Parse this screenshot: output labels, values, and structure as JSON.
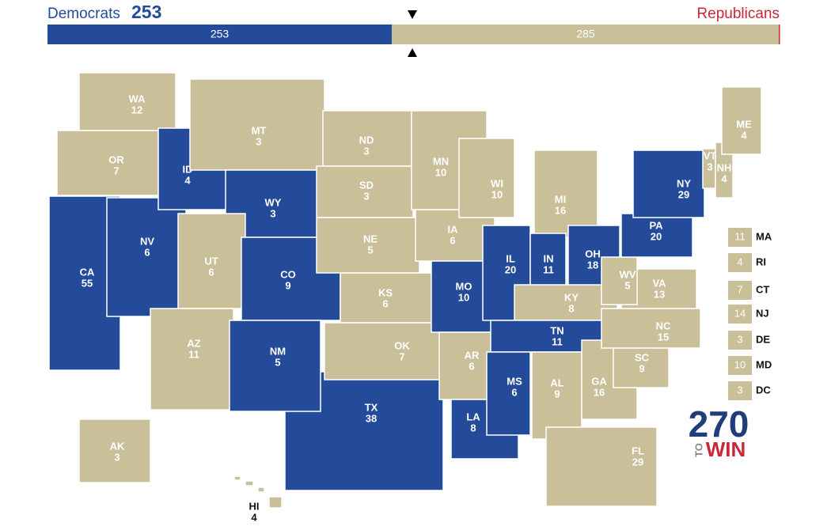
{
  "header": {
    "dem_label": "Democrats",
    "dem_total": 253,
    "rep_label": "Republicans",
    "bar": [
      {
        "party": "D",
        "value": 253
      },
      {
        "party": "R",
        "value": 285
      }
    ]
  },
  "party_colors": {
    "D": "#244a9a",
    "R": "#c9bf99"
  },
  "states": [
    {
      "abbr": "CA",
      "votes": 55,
      "party": "D"
    },
    {
      "abbr": "NV",
      "votes": 6,
      "party": "D"
    },
    {
      "abbr": "OR",
      "votes": 7,
      "party": "R"
    },
    {
      "abbr": "WA",
      "votes": 12,
      "party": "R"
    },
    {
      "abbr": "ID",
      "votes": 4,
      "party": "D"
    },
    {
      "abbr": "MT",
      "votes": 3,
      "party": "R"
    },
    {
      "abbr": "WY",
      "votes": 3,
      "party": "D"
    },
    {
      "abbr": "UT",
      "votes": 6,
      "party": "R"
    },
    {
      "abbr": "CO",
      "votes": 9,
      "party": "D"
    },
    {
      "abbr": "AZ",
      "votes": 11,
      "party": "R"
    },
    {
      "abbr": "TX",
      "votes": 38,
      "party": "D"
    },
    {
      "abbr": "OK",
      "votes": 7,
      "party": "R"
    },
    {
      "abbr": "NM",
      "votes": 5,
      "party": "D"
    },
    {
      "abbr": "ND",
      "votes": 3,
      "party": "R"
    },
    {
      "abbr": "SD",
      "votes": 3,
      "party": "R"
    },
    {
      "abbr": "NE",
      "votes": 5,
      "party": "R"
    },
    {
      "abbr": "KS",
      "votes": 6,
      "party": "R"
    },
    {
      "abbr": "MN",
      "votes": 10,
      "party": "R"
    },
    {
      "abbr": "IA",
      "votes": 6,
      "party": "R"
    },
    {
      "abbr": "MO",
      "votes": 10,
      "party": "D"
    },
    {
      "abbr": "AR",
      "votes": 6,
      "party": "R"
    },
    {
      "abbr": "LA",
      "votes": 8,
      "party": "D"
    },
    {
      "abbr": "WI",
      "votes": 10,
      "party": "R"
    },
    {
      "abbr": "IL",
      "votes": 20,
      "party": "D"
    },
    {
      "abbr": "MI",
      "votes": 16,
      "party": "R"
    },
    {
      "abbr": "IN",
      "votes": 11,
      "party": "D"
    },
    {
      "abbr": "OH",
      "votes": 18,
      "party": "D"
    },
    {
      "abbr": "KY",
      "votes": 8,
      "party": "R"
    },
    {
      "abbr": "TN",
      "votes": 11,
      "party": "D"
    },
    {
      "abbr": "MS",
      "votes": 6,
      "party": "D"
    },
    {
      "abbr": "AL",
      "votes": 9,
      "party": "R"
    },
    {
      "abbr": "GA",
      "votes": 16,
      "party": "R"
    },
    {
      "abbr": "FL",
      "votes": 29,
      "party": "R"
    },
    {
      "abbr": "SC",
      "votes": 9,
      "party": "R"
    },
    {
      "abbr": "NC",
      "votes": 15,
      "party": "R"
    },
    {
      "abbr": "VA",
      "votes": 13,
      "party": "R"
    },
    {
      "abbr": "WV",
      "votes": 5,
      "party": "R"
    },
    {
      "abbr": "PA",
      "votes": 20,
      "party": "D"
    },
    {
      "abbr": "NY",
      "votes": 29,
      "party": "D"
    },
    {
      "abbr": "VT",
      "votes": 3,
      "party": "R"
    },
    {
      "abbr": "NH",
      "votes": 4,
      "party": "R"
    },
    {
      "abbr": "ME",
      "votes": 4,
      "party": "R"
    },
    {
      "abbr": "AK",
      "votes": 3,
      "party": "R"
    },
    {
      "abbr": "HI",
      "votes": 4,
      "party": "R"
    }
  ],
  "small_states": [
    {
      "abbr": "MA",
      "votes": 11,
      "party": "R"
    },
    {
      "abbr": "RI",
      "votes": 4,
      "party": "R"
    },
    {
      "abbr": "CT",
      "votes": 7,
      "party": "R"
    },
    {
      "abbr": "NJ",
      "votes": 14,
      "party": "R"
    },
    {
      "abbr": "DE",
      "votes": 3,
      "party": "R"
    },
    {
      "abbr": "MD",
      "votes": 10,
      "party": "R"
    },
    {
      "abbr": "DC",
      "votes": 3,
      "party": "R"
    }
  ],
  "logo": {
    "number": "270",
    "to": "TO",
    "win": "WIN"
  }
}
